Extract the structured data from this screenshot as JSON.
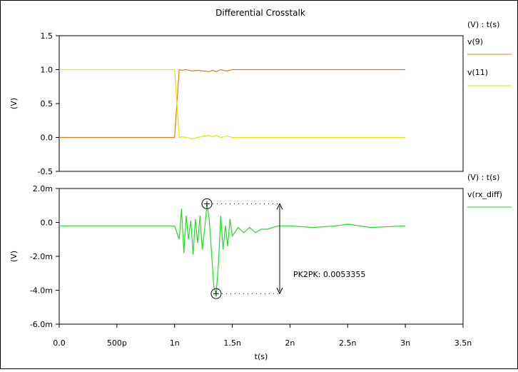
{
  "chart_data": [
    {
      "type": "line",
      "title": "Differential Crosstalk",
      "xlabel": "",
      "ylabel": "(V)",
      "ylim": [
        -0.5,
        1.5
      ],
      "xlim": [
        0,
        3.5e-09
      ],
      "y_ticks": [
        "1.5",
        "1.0",
        "0.5",
        "0.0",
        "-0.5"
      ],
      "y_tick_values": [
        1.5,
        1.0,
        0.5,
        0.0,
        -0.5
      ],
      "legend_header": "(V) : t(s)",
      "legend_position": "right",
      "series": [
        {
          "name": "v(9)",
          "color": "#e07b1a",
          "x": [
            0,
            1e-09,
            1.02e-09,
            1.04e-09,
            1.06e-09,
            1.1e-09,
            1.15e-09,
            1.2e-09,
            1.25e-09,
            1.3e-09,
            1.33e-09,
            1.36e-09,
            1.4e-09,
            1.45e-09,
            1.5e-09,
            1.6e-09,
            3e-09
          ],
          "y": [
            0.0,
            0.0,
            0.5,
            1.0,
            0.99,
            1.0,
            0.98,
            0.99,
            0.98,
            0.97,
            0.99,
            0.97,
            1.0,
            0.98,
            1.0,
            1.0,
            1.0
          ]
        },
        {
          "name": "v(11)",
          "color": "#e6e600",
          "x": [
            0,
            1e-09,
            1.02e-09,
            1.04e-09,
            1.06e-09,
            1.1e-09,
            1.15e-09,
            1.2e-09,
            1.25e-09,
            1.3e-09,
            1.33e-09,
            1.36e-09,
            1.4e-09,
            1.45e-09,
            1.5e-09,
            1.6e-09,
            3e-09
          ],
          "y": [
            1.0,
            1.0,
            0.5,
            0.0,
            0.01,
            0.0,
            -0.02,
            0.0,
            0.02,
            0.03,
            0.01,
            0.03,
            0.0,
            0.02,
            0.0,
            0.0,
            0.0
          ]
        }
      ]
    },
    {
      "type": "line",
      "xlabel": "t(s)",
      "ylabel": "(V)",
      "ylim": [
        -0.006,
        0.002
      ],
      "xlim": [
        0,
        3.5e-09
      ],
      "y_ticks": [
        "2.0m",
        "0.0",
        "-2.0m",
        "-4.0m",
        "-6.0m"
      ],
      "y_tick_values": [
        0.002,
        0.0,
        -0.002,
        -0.004,
        -0.006
      ],
      "x_ticks": [
        "0.0",
        "500p",
        "1n",
        "1.5n",
        "2n",
        "2.5n",
        "3n",
        "3.5n"
      ],
      "x_tick_values": [
        0,
        5e-10,
        1e-09,
        1.5e-09,
        2e-09,
        2.5e-09,
        3e-09,
        3.5e-09
      ],
      "legend_header": "(V) : t(s)",
      "legend_position": "right",
      "series": [
        {
          "name": "v(rx_diff)",
          "color": "#22dd22",
          "x": [
            0,
            5e-10,
            1e-09,
            1.02e-09,
            1.04e-09,
            1.06e-09,
            1.08e-09,
            1.1e-09,
            1.12e-09,
            1.14e-09,
            1.16e-09,
            1.18e-09,
            1.2e-09,
            1.22e-09,
            1.24e-09,
            1.26e-09,
            1.28e-09,
            1.3e-09,
            1.32e-09,
            1.34e-09,
            1.36e-09,
            1.38e-09,
            1.4e-09,
            1.42e-09,
            1.44e-09,
            1.46e-09,
            1.48e-09,
            1.5e-09,
            1.55e-09,
            1.6e-09,
            1.65e-09,
            1.7e-09,
            1.75e-09,
            1.8e-09,
            1.9e-09,
            2e-09,
            2.2e-09,
            2.4e-09,
            2.5e-09,
            2.7e-09,
            3e-09
          ],
          "y": [
            -0.0002,
            -0.0002,
            -0.0002,
            -0.0006,
            -0.001,
            0.0008,
            -0.0018,
            0.0004,
            -0.001,
            0.0001,
            -0.0019,
            0.0002,
            -0.0012,
            0.0004,
            -0.0016,
            -0.0004,
            0.0011,
            0.0002,
            -0.0018,
            -0.0038,
            -0.0042,
            -0.0024,
            0.0004,
            -0.0016,
            -0.0002,
            -0.0014,
            0.0002,
            -0.0008,
            -0.0003,
            -0.0006,
            -0.0003,
            -0.0006,
            -0.0004,
            -0.0004,
            -0.0002,
            -0.0002,
            -0.0003,
            -0.0002,
            -0.0001,
            -0.0003,
            -0.0002
          ]
        }
      ],
      "annotation": {
        "label": "PK2PK: 0.0053355",
        "max_point": {
          "x": 1.28e-09,
          "y": 0.0011
        },
        "min_point": {
          "x": 1.36e-09,
          "y": -0.0042
        }
      }
    }
  ]
}
